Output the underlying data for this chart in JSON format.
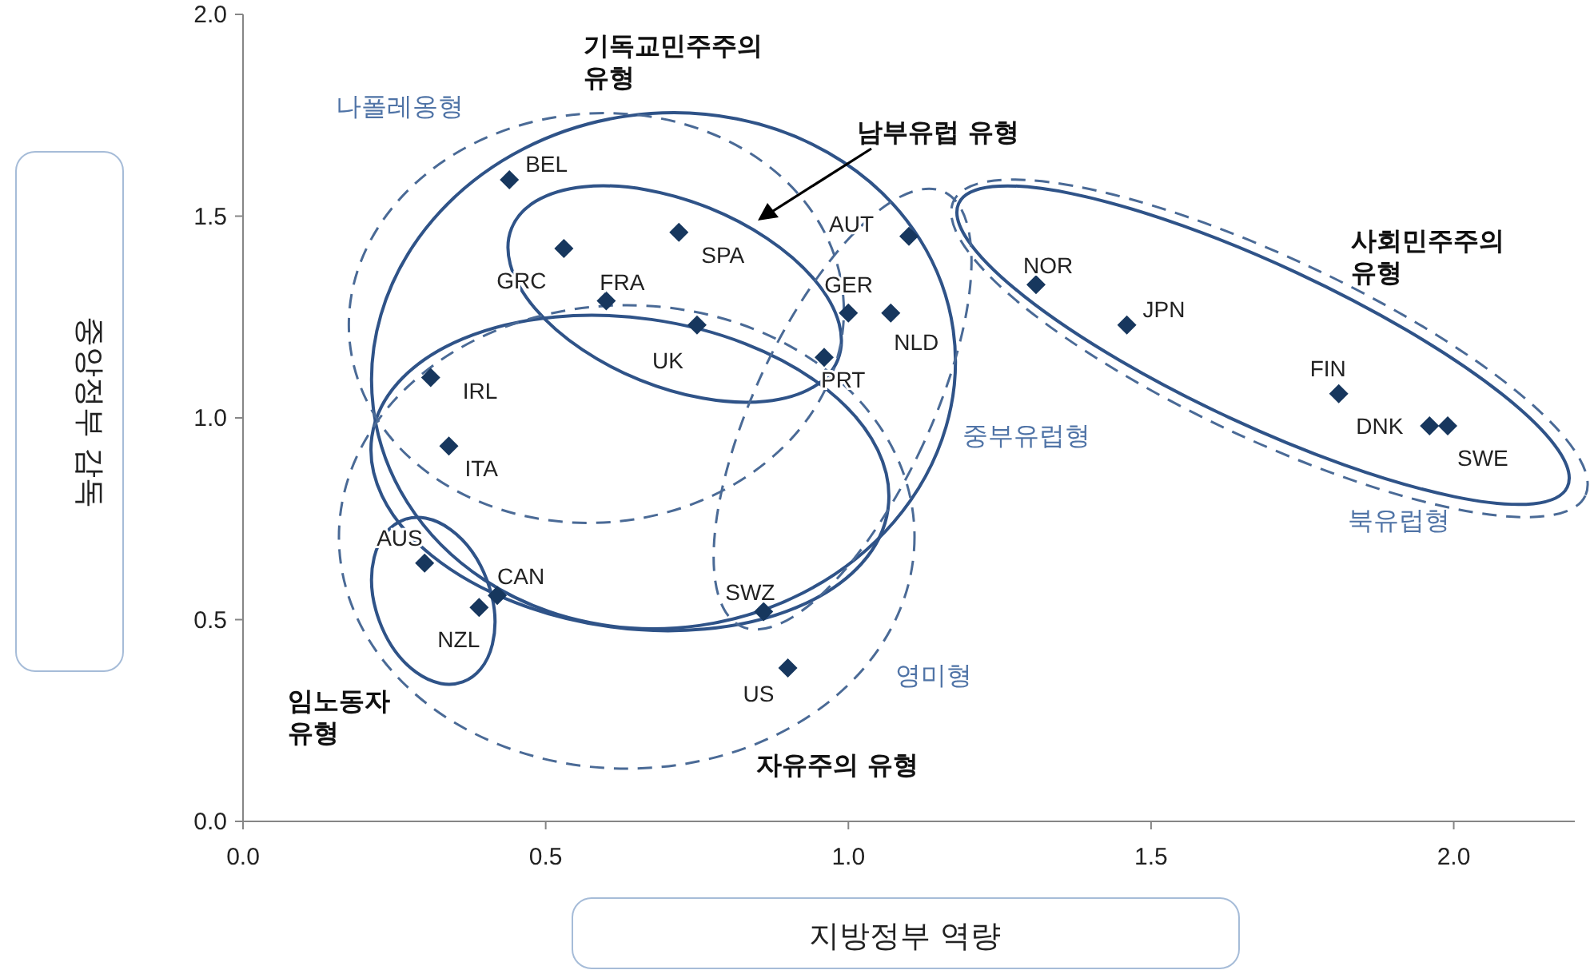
{
  "chart_data": {
    "type": "scatter",
    "xlabel": "지방정부 역량",
    "ylabel": "중앙정부 감독",
    "x": [
      0.44,
      0.53,
      0.72,
      0.6,
      0.75,
      1.1,
      1.0,
      1.07,
      0.96,
      0.31,
      0.34,
      0.3,
      0.42,
      0.39,
      0.86,
      0.9,
      1.31,
      1.46,
      1.81,
      1.96,
      1.99
    ],
    "values": [
      1.59,
      1.42,
      1.46,
      1.29,
      1.23,
      1.45,
      1.26,
      1.26,
      1.15,
      1.1,
      0.93,
      0.64,
      0.56,
      0.53,
      0.52,
      0.38,
      1.33,
      1.23,
      1.06,
      0.98,
      0.98
    ],
    "color": "#17375e",
    "marker": "diamond",
    "grid": false,
    "xlim": [
      0,
      2.2
    ],
    "ylim": [
      0,
      2
    ],
    "xticks": [
      {
        "value": 0,
        "label": "0.0"
      },
      {
        "value": 0.5,
        "label": "0.5"
      },
      {
        "value": 1,
        "label": "1.0"
      },
      {
        "value": 1.5,
        "label": "1.5"
      },
      {
        "value": 2,
        "label": "2.0"
      }
    ],
    "yticks": [
      {
        "value": 0,
        "label": "0.0"
      },
      {
        "value": 0.5,
        "label": "0.5"
      },
      {
        "value": 1,
        "label": "1.0"
      },
      {
        "value": 1.5,
        "label": "1.5"
      },
      {
        "value": 2,
        "label": "2.0"
      }
    ],
    "annotations": [
      {
        "text": "BEL",
        "x": 0.44,
        "y": 1.59
      },
      {
        "text": "GRC",
        "x": 0.53,
        "y": 1.42
      },
      {
        "text": "SPA",
        "x": 0.72,
        "y": 1.46
      },
      {
        "text": "FRA",
        "x": 0.6,
        "y": 1.29
      },
      {
        "text": "UK",
        "x": 0.75,
        "y": 1.23
      },
      {
        "text": "AUT",
        "x": 1.1,
        "y": 1.45
      },
      {
        "text": "GER",
        "x": 1.0,
        "y": 1.26
      },
      {
        "text": "NLD",
        "x": 1.07,
        "y": 1.26
      },
      {
        "text": "PRT",
        "x": 0.96,
        "y": 1.15
      },
      {
        "text": "IRL",
        "x": 0.31,
        "y": 1.1
      },
      {
        "text": "ITA",
        "x": 0.34,
        "y": 0.93
      },
      {
        "text": "AUS",
        "x": 0.3,
        "y": 0.64
      },
      {
        "text": "CAN",
        "x": 0.42,
        "y": 0.56
      },
      {
        "text": "NZL",
        "x": 0.39,
        "y": 0.53
      },
      {
        "text": "SWZ",
        "x": 0.86,
        "y": 0.52
      },
      {
        "text": "US",
        "x": 0.9,
        "y": 0.38
      },
      {
        "text": "NOR",
        "x": 1.31,
        "y": 1.33
      },
      {
        "text": "JPN",
        "x": 1.46,
        "y": 1.23
      },
      {
        "text": "FIN",
        "x": 1.81,
        "y": 1.06
      },
      {
        "text": "DNK",
        "x": 1.96,
        "y": 0.98
      },
      {
        "text": "SWE",
        "x": 1.99,
        "y": 0.98
      },
      "나폴레옹형",
      "기독교민주주의 유형",
      "남부유럽 유형",
      "중부유럽형",
      "사회민주주의 유형",
      "북유럽형",
      "영미형",
      "자유주의 유형",
      "임노동자 유형"
    ]
  }
}
